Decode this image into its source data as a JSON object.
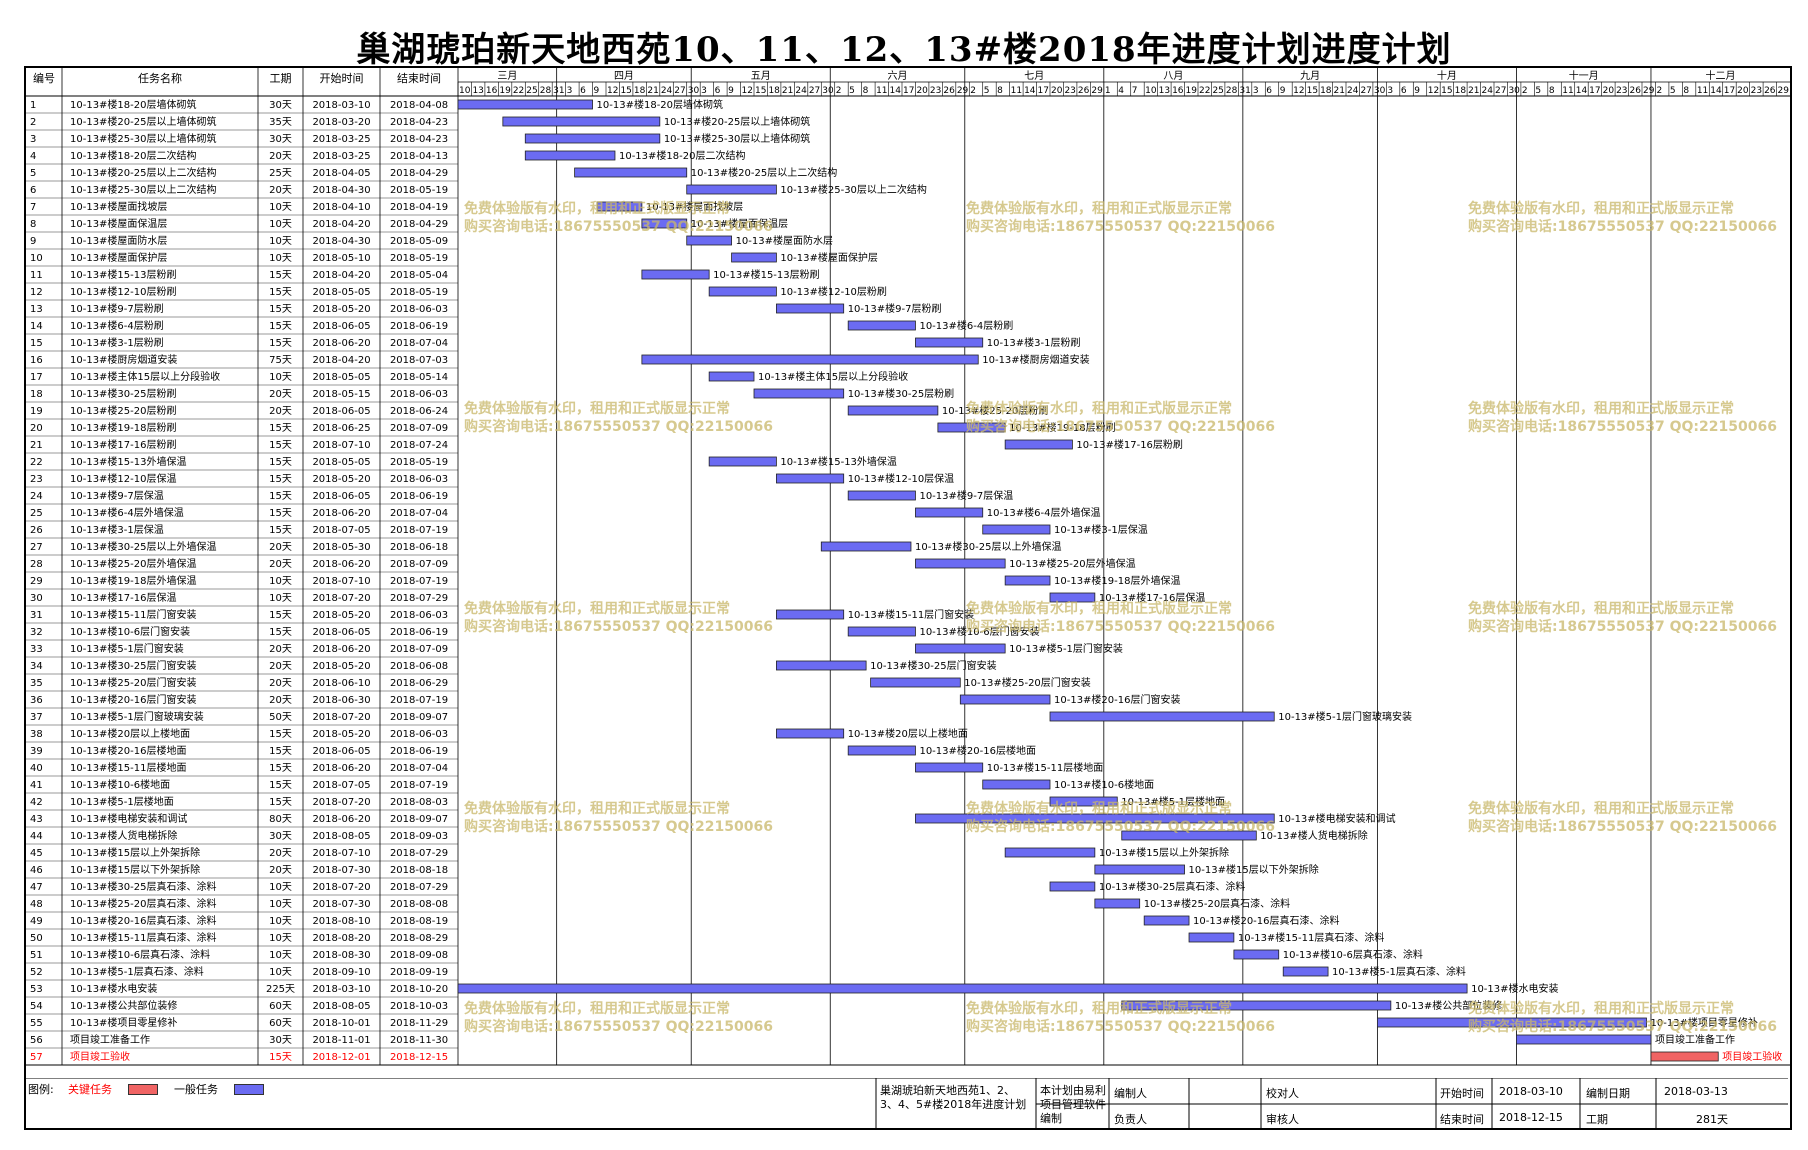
{
  "title": "巢湖琥珀新天地西苑10、11、12、13#楼2018年进度计划进度计划",
  "colors": {
    "normal_bar": "#6b6bf2",
    "critical_bar": "#f06464",
    "critical_text": "#ff0000",
    "watermark": "#c9b86a"
  },
  "headers": {
    "id": "编号",
    "name": "任务名称",
    "duration": "工期",
    "start": "开始时间",
    "end": "结束时间"
  },
  "months": [
    {
      "label": "三月",
      "days": [
        10,
        13,
        16,
        19,
        22,
        25,
        28,
        31
      ]
    },
    {
      "label": "四月",
      "days": [
        3,
        6,
        9,
        12,
        15,
        18,
        21,
        24,
        27,
        30
      ]
    },
    {
      "label": "五月",
      "days": [
        3,
        6,
        9,
        12,
        15,
        18,
        21,
        24,
        27,
        30
      ]
    },
    {
      "label": "六月",
      "days": [
        2,
        5,
        8,
        11,
        14,
        17,
        20,
        23,
        26,
        29
      ]
    },
    {
      "label": "七月",
      "days": [
        2,
        5,
        8,
        11,
        14,
        17,
        20,
        23,
        26,
        29
      ]
    },
    {
      "label": "八月",
      "days": [
        1,
        4,
        7,
        10,
        13,
        16,
        19,
        22,
        25,
        28,
        31
      ]
    },
    {
      "label": "九月",
      "days": [
        3,
        6,
        9,
        12,
        15,
        18,
        21,
        24,
        27,
        30
      ]
    },
    {
      "label": "十月",
      "days": [
        3,
        6,
        9,
        12,
        15,
        18,
        21,
        24,
        27,
        30
      ]
    },
    {
      "label": "十一月",
      "days": [
        2,
        5,
        8,
        11,
        14,
        17,
        20,
        23,
        26,
        29
      ]
    },
    {
      "label": "十二月",
      "days": [
        2,
        5,
        8,
        11,
        14,
        17,
        20,
        23,
        26,
        29
      ]
    }
  ],
  "watermark": {
    "line1": "免费体验版有水印，租用和正式版显示正常",
    "line2": "购买咨询电话:18675550537 QQ:22150066"
  },
  "chart_data": {
    "type": "gantt",
    "x_range": [
      "2018-03-10",
      "2018-12-31"
    ],
    "tasks": [
      {
        "id": "1",
        "name": "10-13#楼18-20层墙体砌筑",
        "duration": "30天",
        "start": "2018-03-10",
        "end": "2018-04-08",
        "critical": false
      },
      {
        "id": "2",
        "name": "10-13#楼20-25层以上墙体砌筑",
        "duration": "35天",
        "start": "2018-03-20",
        "end": "2018-04-23",
        "critical": false
      },
      {
        "id": "3",
        "name": "10-13#楼25-30层以上墙体砌筑",
        "duration": "30天",
        "start": "2018-03-25",
        "end": "2018-04-23",
        "critical": false
      },
      {
        "id": "4",
        "name": "10-13#楼18-20层二次结构",
        "duration": "20天",
        "start": "2018-03-25",
        "end": "2018-04-13",
        "critical": false
      },
      {
        "id": "5",
        "name": "10-13#楼20-25层以上二次结构",
        "duration": "25天",
        "start": "2018-04-05",
        "end": "2018-04-29",
        "critical": false
      },
      {
        "id": "6",
        "name": "10-13#楼25-30层以上二次结构",
        "duration": "20天",
        "start": "2018-04-30",
        "end": "2018-05-19",
        "critical": false
      },
      {
        "id": "7",
        "name": "10-13#楼屋面找坡层",
        "duration": "10天",
        "start": "2018-04-10",
        "end": "2018-04-19",
        "critical": false
      },
      {
        "id": "8",
        "name": "10-13#楼屋面保温层",
        "duration": "10天",
        "start": "2018-04-20",
        "end": "2018-04-29",
        "critical": false
      },
      {
        "id": "9",
        "name": "10-13#楼屋面防水层",
        "duration": "10天",
        "start": "2018-04-30",
        "end": "2018-05-09",
        "critical": false
      },
      {
        "id": "10",
        "name": "10-13#楼屋面保护层",
        "duration": "10天",
        "start": "2018-05-10",
        "end": "2018-05-19",
        "critical": false
      },
      {
        "id": "11",
        "name": "10-13#楼15-13层粉刷",
        "duration": "15天",
        "start": "2018-04-20",
        "end": "2018-05-04",
        "critical": false
      },
      {
        "id": "12",
        "name": "10-13#楼12-10层粉刷",
        "duration": "15天",
        "start": "2018-05-05",
        "end": "2018-05-19",
        "critical": false
      },
      {
        "id": "13",
        "name": "10-13#楼9-7层粉刷",
        "duration": "15天",
        "start": "2018-05-20",
        "end": "2018-06-03",
        "critical": false
      },
      {
        "id": "14",
        "name": "10-13#楼6-4层粉刷",
        "duration": "15天",
        "start": "2018-06-05",
        "end": "2018-06-19",
        "critical": false
      },
      {
        "id": "15",
        "name": "10-13#楼3-1层粉刷",
        "duration": "15天",
        "start": "2018-06-20",
        "end": "2018-07-04",
        "critical": false
      },
      {
        "id": "16",
        "name": "10-13#楼厨房烟道安装",
        "duration": "75天",
        "start": "2018-04-20",
        "end": "2018-07-03",
        "critical": false
      },
      {
        "id": "17",
        "name": "10-13#楼主体15层以上分段验收",
        "duration": "10天",
        "start": "2018-05-05",
        "end": "2018-05-14",
        "critical": false
      },
      {
        "id": "18",
        "name": "10-13#楼30-25层粉刷",
        "duration": "20天",
        "start": "2018-05-15",
        "end": "2018-06-03",
        "critical": false
      },
      {
        "id": "19",
        "name": "10-13#楼25-20层粉刷",
        "duration": "20天",
        "start": "2018-06-05",
        "end": "2018-06-24",
        "critical": false
      },
      {
        "id": "20",
        "name": "10-13#楼19-18层粉刷",
        "duration": "15天",
        "start": "2018-06-25",
        "end": "2018-07-09",
        "critical": false
      },
      {
        "id": "21",
        "name": "10-13#楼17-16层粉刷",
        "duration": "15天",
        "start": "2018-07-10",
        "end": "2018-07-24",
        "critical": false
      },
      {
        "id": "22",
        "name": "10-13#楼15-13外墙保温",
        "duration": "15天",
        "start": "2018-05-05",
        "end": "2018-05-19",
        "critical": false
      },
      {
        "id": "23",
        "name": "10-13#楼12-10层保温",
        "duration": "15天",
        "start": "2018-05-20",
        "end": "2018-06-03",
        "critical": false
      },
      {
        "id": "24",
        "name": "10-13#楼9-7层保温",
        "duration": "15天",
        "start": "2018-06-05",
        "end": "2018-06-19",
        "critical": false
      },
      {
        "id": "25",
        "name": "10-13#楼6-4层外墙保温",
        "duration": "15天",
        "start": "2018-06-20",
        "end": "2018-07-04",
        "critical": false
      },
      {
        "id": "26",
        "name": "10-13#楼3-1层保温",
        "duration": "15天",
        "start": "2018-07-05",
        "end": "2018-07-19",
        "critical": false
      },
      {
        "id": "27",
        "name": "10-13#楼30-25层以上外墙保温",
        "duration": "20天",
        "start": "2018-05-30",
        "end": "2018-06-18",
        "critical": false
      },
      {
        "id": "28",
        "name": "10-13#楼25-20层外墙保温",
        "duration": "20天",
        "start": "2018-06-20",
        "end": "2018-07-09",
        "critical": false
      },
      {
        "id": "29",
        "name": "10-13#楼19-18层外墙保温",
        "duration": "10天",
        "start": "2018-07-10",
        "end": "2018-07-19",
        "critical": false
      },
      {
        "id": "30",
        "name": "10-13#楼17-16层保温",
        "duration": "10天",
        "start": "2018-07-20",
        "end": "2018-07-29",
        "critical": false
      },
      {
        "id": "31",
        "name": "10-13#楼15-11层门窗安装",
        "duration": "15天",
        "start": "2018-05-20",
        "end": "2018-06-03",
        "critical": false
      },
      {
        "id": "32",
        "name": "10-13#楼10-6层门窗安装",
        "duration": "15天",
        "start": "2018-06-05",
        "end": "2018-06-19",
        "critical": false
      },
      {
        "id": "33",
        "name": "10-13#楼5-1层门窗安装",
        "duration": "20天",
        "start": "2018-06-20",
        "end": "2018-07-09",
        "critical": false
      },
      {
        "id": "34",
        "name": "10-13#楼30-25层门窗安装",
        "duration": "20天",
        "start": "2018-05-20",
        "end": "2018-06-08",
        "critical": false
      },
      {
        "id": "35",
        "name": "10-13#楼25-20层门窗安装",
        "duration": "20天",
        "start": "2018-06-10",
        "end": "2018-06-29",
        "critical": false
      },
      {
        "id": "36",
        "name": "10-13#楼20-16层门窗安装",
        "duration": "20天",
        "start": "2018-06-30",
        "end": "2018-07-19",
        "critical": false
      },
      {
        "id": "37",
        "name": "10-13#楼5-1层门窗玻璃安装",
        "duration": "50天",
        "start": "2018-07-20",
        "end": "2018-09-07",
        "critical": false
      },
      {
        "id": "38",
        "name": "10-13#楼20层以上楼地面",
        "duration": "15天",
        "start": "2018-05-20",
        "end": "2018-06-03",
        "critical": false
      },
      {
        "id": "39",
        "name": "10-13#楼20-16层楼地面",
        "duration": "15天",
        "start": "2018-06-05",
        "end": "2018-06-19",
        "critical": false
      },
      {
        "id": "40",
        "name": "10-13#楼15-11层楼地面",
        "duration": "15天",
        "start": "2018-06-20",
        "end": "2018-07-04",
        "critical": false
      },
      {
        "id": "41",
        "name": "10-13#楼10-6楼地面",
        "duration": "15天",
        "start": "2018-07-05",
        "end": "2018-07-19",
        "critical": false
      },
      {
        "id": "42",
        "name": "10-13#楼5-1层楼地面",
        "duration": "15天",
        "start": "2018-07-20",
        "end": "2018-08-03",
        "critical": false
      },
      {
        "id": "43",
        "name": "10-13#楼电梯安装和调试",
        "duration": "80天",
        "start": "2018-06-20",
        "end": "2018-09-07",
        "critical": false
      },
      {
        "id": "44",
        "name": "10-13#楼人货电梯拆除",
        "duration": "30天",
        "start": "2018-08-05",
        "end": "2018-09-03",
        "critical": false
      },
      {
        "id": "45",
        "name": "10-13#楼15层以上外架拆除",
        "duration": "20天",
        "start": "2018-07-10",
        "end": "2018-07-29",
        "critical": false
      },
      {
        "id": "46",
        "name": "10-13#楼15层以下外架拆除",
        "duration": "20天",
        "start": "2018-07-30",
        "end": "2018-08-18",
        "critical": false
      },
      {
        "id": "47",
        "name": "10-13#楼30-25层真石漆、涂料",
        "duration": "10天",
        "start": "2018-07-20",
        "end": "2018-07-29",
        "critical": false
      },
      {
        "id": "48",
        "name": "10-13#楼25-20层真石漆、涂料",
        "duration": "10天",
        "start": "2018-07-30",
        "end": "2018-08-08",
        "critical": false
      },
      {
        "id": "49",
        "name": "10-13#楼20-16层真石漆、涂料",
        "duration": "10天",
        "start": "2018-08-10",
        "end": "2018-08-19",
        "critical": false
      },
      {
        "id": "50",
        "name": "10-13#楼15-11层真石漆、涂料",
        "duration": "10天",
        "start": "2018-08-20",
        "end": "2018-08-29",
        "critical": false
      },
      {
        "id": "51",
        "name": "10-13#楼10-6层真石漆、涂料",
        "duration": "10天",
        "start": "2018-08-30",
        "end": "2018-09-08",
        "critical": false
      },
      {
        "id": "52",
        "name": "10-13#楼5-1层真石漆、涂料",
        "duration": "10天",
        "start": "2018-09-10",
        "end": "2018-09-19",
        "critical": false
      },
      {
        "id": "53",
        "name": "10-13#楼水电安装",
        "duration": "225天",
        "start": "2018-03-10",
        "end": "2018-10-20",
        "critical": false
      },
      {
        "id": "54",
        "name": "10-13#楼公共部位装修",
        "duration": "60天",
        "start": "2018-08-05",
        "end": "2018-10-03",
        "critical": false
      },
      {
        "id": "55",
        "name": "10-13#楼项目零星修补",
        "duration": "60天",
        "start": "2018-10-01",
        "end": "2018-11-29",
        "critical": false
      },
      {
        "id": "56",
        "name": "项目竣工准备工作",
        "duration": "30天",
        "start": "2018-11-01",
        "end": "2018-11-30",
        "critical": false
      },
      {
        "id": "57",
        "name": "项目竣工验收",
        "duration": "15天",
        "start": "2018-12-01",
        "end": "2018-12-15",
        "critical": true
      }
    ]
  },
  "legend": {
    "label": "图例:",
    "critical": "关键任务",
    "normal": "一般任务"
  },
  "footer": {
    "project_desc": "巢湖琥珀新天地西苑1、2、3、4、5#楼2018年进度计划",
    "software": "本计划由易利项目管理软件编制",
    "editor_label": "编制人",
    "owner_label": "负责人",
    "checker_label": "校对人",
    "reviewer_label": "审核人",
    "start_label": "开始时间",
    "start_value": "2018-03-10",
    "made_label": "编制日期",
    "made_value": "2018-03-13",
    "end_label": "结束时间",
    "end_value": "2018-12-15",
    "duration_label": "工期",
    "duration_value": "281天"
  }
}
